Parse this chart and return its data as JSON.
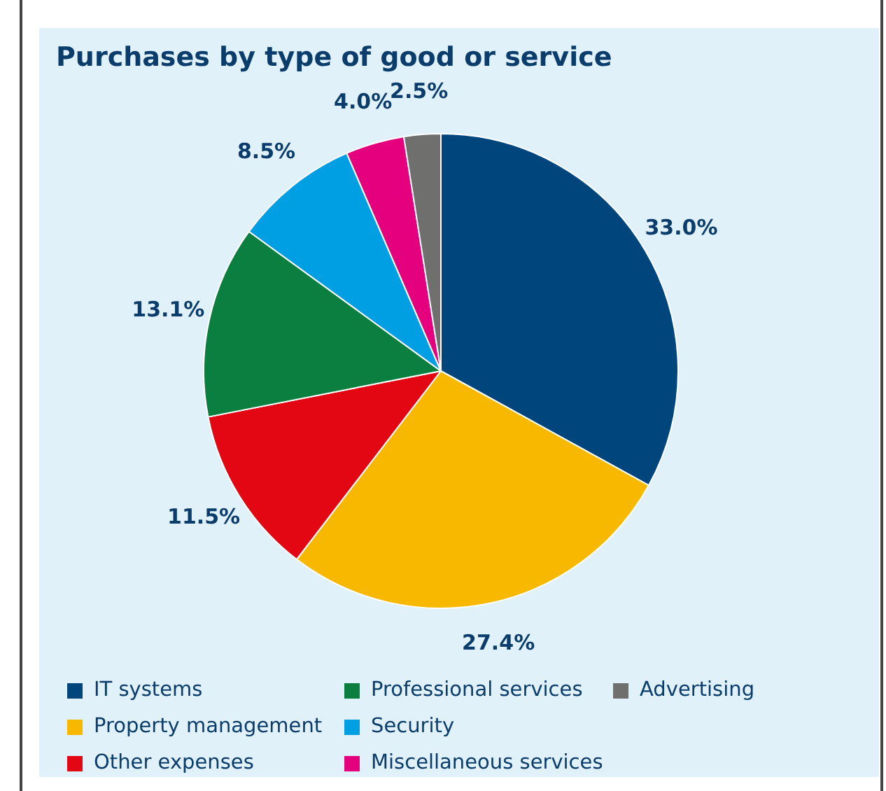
{
  "chart_data": {
    "type": "pie",
    "title": "Purchases by type of good or service",
    "categories": [
      "IT systems",
      "Property management",
      "Other expenses",
      "Professional services",
      "Security",
      "Miscellaneous services",
      "Advertising"
    ],
    "values": [
      33.0,
      27.4,
      11.5,
      13.1,
      8.5,
      4.0,
      2.5
    ],
    "colors": [
      "#00457c",
      "#f9b800",
      "#e30613",
      "#0a7f3f",
      "#009fe3",
      "#e5007d",
      "#6f6f6e"
    ],
    "value_labels": [
      "33.0%",
      "27.4%",
      "11.5%",
      "13.1%",
      "8.5%",
      "4.0%",
      "2.5%"
    ],
    "legend": "bottom"
  }
}
